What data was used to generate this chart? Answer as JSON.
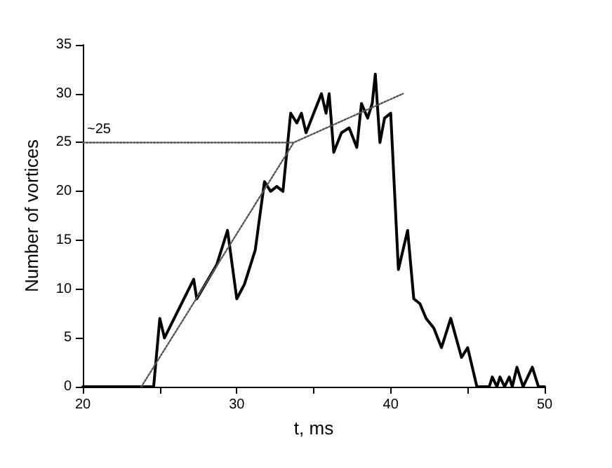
{
  "chart_data": {
    "type": "line",
    "xlabel": "t, ms",
    "ylabel": "Number of vortices",
    "xlim": [
      20,
      50
    ],
    "ylim": [
      0,
      35
    ],
    "xticks": [
      20,
      {
        "value": 25,
        "label": null
      },
      30,
      {
        "value": 35,
        "label": null
      },
      40,
      {
        "value": 45,
        "label": null
      },
      50
    ],
    "yticks": [
      0,
      5,
      10,
      15,
      20,
      25,
      30,
      35
    ],
    "grid": false,
    "marker": "none",
    "annotations": [
      {
        "text": "~25",
        "x": 20,
        "y": 25
      }
    ],
    "series": [
      {
        "color": "#000000",
        "line_style": "solid",
        "x": [
          20,
          24.6,
          25.0,
          25.3,
          27.2,
          27.4,
          28.7,
          29.4,
          30.0,
          30.5,
          31.2,
          31.8,
          32.2,
          32.6,
          33.0,
          33.5,
          33.9,
          34.2,
          34.5,
          35.0,
          35.5,
          35.8,
          36.0,
          36.3,
          36.8,
          37.3,
          37.8,
          38.1,
          38.5,
          38.8,
          39.0,
          39.3,
          39.6,
          40.0,
          40.5,
          41.1,
          41.5,
          41.9,
          42.3,
          42.8,
          43.3,
          43.9,
          44.6,
          45.0,
          45.3,
          45.6,
          46.4,
          46.6,
          46.9,
          47.1,
          47.4,
          47.7,
          47.9,
          48.2,
          48.6,
          49.2,
          49.6,
          50
        ],
        "values": [
          0,
          0,
          7,
          5,
          11,
          9,
          12.5,
          16,
          9,
          10.5,
          14,
          21,
          20,
          20.5,
          20,
          28,
          27,
          28,
          26,
          28,
          30,
          28,
          30,
          24,
          26,
          26.5,
          24.5,
          29,
          27.5,
          29,
          32,
          25,
          27.5,
          28,
          12,
          16,
          9,
          8.5,
          7,
          6,
          4,
          7,
          3,
          4,
          2,
          0,
          0,
          1,
          0,
          1,
          0,
          1,
          0,
          2,
          0,
          2,
          0,
          0
        ]
      },
      {
        "color": "#555555",
        "line_style": "dotted",
        "x": [
          23.8,
          33.7,
          40.8
        ],
        "values": [
          0,
          25,
          30
        ]
      },
      {
        "color": "#555555",
        "line_style": "dotted",
        "x": [
          20,
          33.7
        ],
        "values": [
          25,
          25
        ]
      }
    ]
  }
}
